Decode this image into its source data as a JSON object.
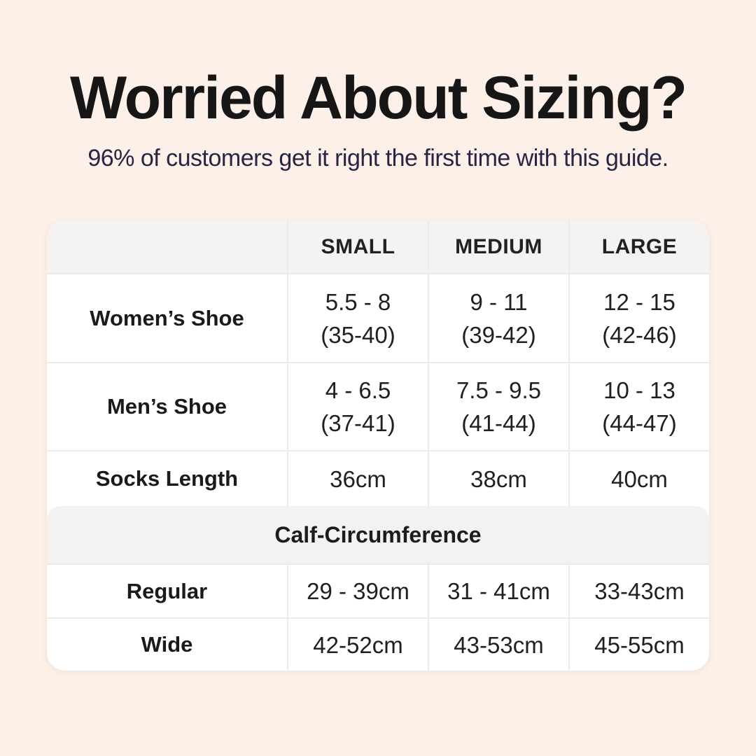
{
  "header": {
    "title": "Worried About Sizing?",
    "subtitle": "96% of customers get it right the first time with this guide."
  },
  "table": {
    "column_headers": [
      "SMALL",
      "MEDIUM",
      "LARGE"
    ],
    "rows": [
      {
        "label": "Women’s Shoe",
        "small": [
          "5.5 - 8",
          "(35-40)"
        ],
        "medium": [
          "9 - 11",
          "(39-42)"
        ],
        "large": [
          "12 - 15",
          "(42-46)"
        ]
      },
      {
        "label": "Men’s Shoe",
        "small": [
          "4 - 6.5",
          "(37-41)"
        ],
        "medium": [
          "7.5 - 9.5",
          "(41-44)"
        ],
        "large": [
          "10 - 13",
          "(44-47)"
        ]
      },
      {
        "label": "Socks Length",
        "small": [
          "36cm"
        ],
        "medium": [
          "38cm"
        ],
        "large": [
          "40cm"
        ]
      }
    ],
    "section_header": "Calf-Circumference",
    "section_rows": [
      {
        "label": "Regular",
        "small": [
          "29 - 39cm"
        ],
        "medium": [
          "31 - 41cm"
        ],
        "large": [
          "33-43cm"
        ]
      },
      {
        "label": "Wide",
        "small": [
          "42-52cm"
        ],
        "medium": [
          "43-53cm"
        ],
        "large": [
          "45-55cm"
        ]
      }
    ]
  },
  "colors": {
    "background": "#fcf0e8",
    "table_background": "#ffffff",
    "header_band": "#f4f3f2",
    "section_band": "#f3f2f0",
    "separator": "#ecebe9",
    "title_text": "#161616",
    "subtitle_text": "#282443",
    "body_text": "#202020"
  }
}
